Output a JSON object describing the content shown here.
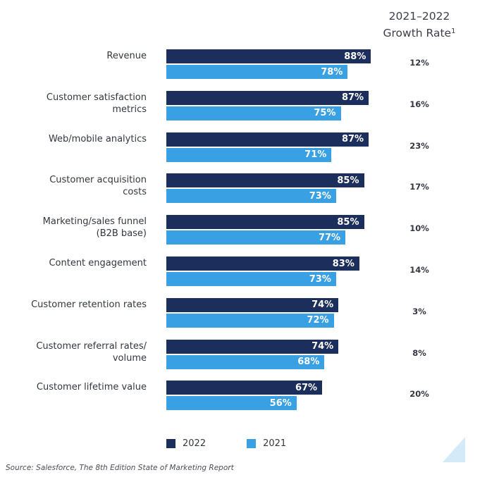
{
  "growth_header": {
    "line1": "2021–2022",
    "line2": "Growth Rate",
    "footnote": "1"
  },
  "legend": [
    {
      "label": "2022",
      "color": "#1c2e5c"
    },
    {
      "label": "2021",
      "color": "#3aa0e4"
    }
  ],
  "source": "Source: Salesforce, The 8th Edition State of Marketing Report",
  "chart_data": {
    "type": "bar",
    "orientation": "horizontal",
    "categories": [
      "Revenue",
      "Customer satisfaction\nmetrics",
      "Web/mobile analytics",
      "Customer acquisition\ncosts",
      "Marketing/sales funnel\n(B2B base)",
      "Content engagement",
      "Customer retention rates",
      "Customer referral rates/\nvolume",
      "Customer lifetime value"
    ],
    "series": [
      {
        "name": "2022",
        "values": [
          88,
          87,
          87,
          85,
          85,
          83,
          74,
          74,
          67
        ],
        "labels": [
          "88%",
          "87%",
          "87%",
          "85%",
          "85%",
          "83%",
          "74%",
          "74%",
          "67%"
        ]
      },
      {
        "name": "2021",
        "values": [
          78,
          75,
          71,
          73,
          77,
          73,
          72,
          68,
          56
        ],
        "labels": [
          "78%",
          "75%",
          "71%",
          "73%",
          "77%",
          "73%",
          "72%",
          "68%",
          "56%"
        ]
      }
    ],
    "growth_rates": [
      "12%",
      "16%",
      "23%",
      "17%",
      "10%",
      "14%",
      "3%",
      "8%",
      "20%"
    ],
    "xlim": [
      0,
      100
    ],
    "legend_position": "bottom"
  }
}
